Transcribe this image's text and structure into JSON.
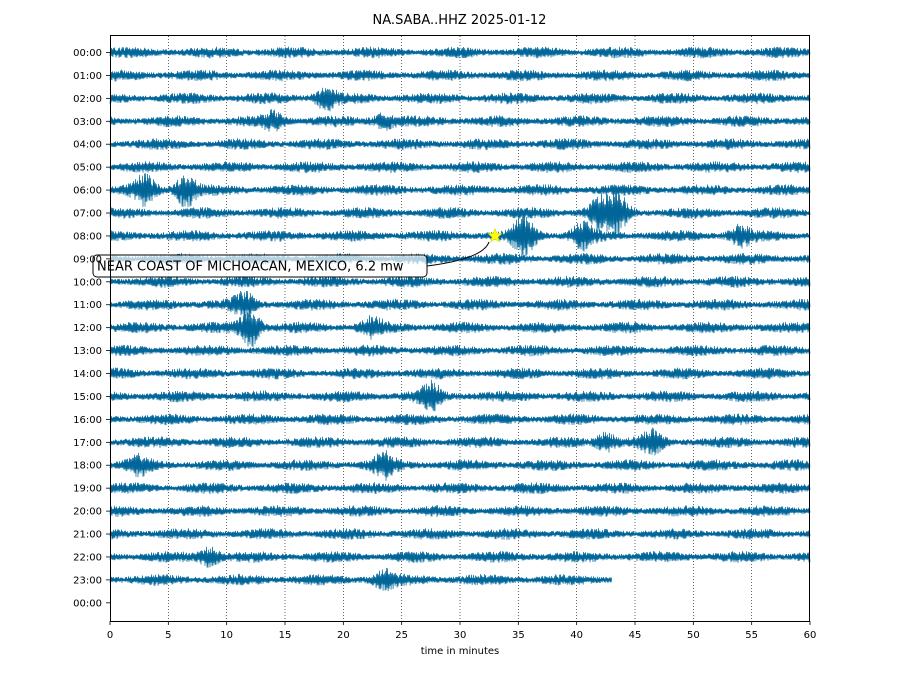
{
  "chart_data": {
    "type": "line",
    "title": "NA.SABA..HHZ 2025-01-12",
    "xlabel": "time in minutes",
    "ylabel": "",
    "xlim": [
      0,
      60
    ],
    "x_ticks": [
      "0",
      "5",
      "10",
      "15",
      "20",
      "25",
      "30",
      "35",
      "40",
      "45",
      "50",
      "55",
      "60"
    ],
    "y_ticks": [
      "00:00",
      "01:00",
      "02:00",
      "03:00",
      "04:00",
      "05:00",
      "06:00",
      "07:00",
      "08:00",
      "09:00",
      "10:00",
      "11:00",
      "12:00",
      "13:00",
      "14:00",
      "15:00",
      "16:00",
      "17:00",
      "18:00",
      "19:00",
      "20:00",
      "21:00",
      "22:00",
      "23:00",
      "00:00"
    ],
    "grid": "vertical dotted",
    "trace_color": "#006699",
    "last_trace_end_minute": 43,
    "events": [
      {
        "hour": 2,
        "minute": 18.5,
        "amplitude": 2.0
      },
      {
        "hour": 3,
        "minute": 14,
        "amplitude": 1.5
      },
      {
        "hour": 3,
        "minute": 23.5,
        "amplitude": 1.3
      },
      {
        "hour": 6,
        "minute": 3,
        "amplitude": 2.5
      },
      {
        "hour": 6,
        "minute": 6.5,
        "amplitude": 3.0
      },
      {
        "hour": 7,
        "minute": 42,
        "amplitude": 2.8
      },
      {
        "hour": 7,
        "minute": 43.5,
        "amplitude": 3.5
      },
      {
        "hour": 8,
        "minute": 35.5,
        "amplitude": 4.0
      },
      {
        "hour": 8,
        "minute": 40.5,
        "amplitude": 2.5
      },
      {
        "hour": 8,
        "minute": 54,
        "amplitude": 1.8
      },
      {
        "hour": 11,
        "minute": 11.5,
        "amplitude": 2.2
      },
      {
        "hour": 12,
        "minute": 12,
        "amplitude": 3.5
      },
      {
        "hour": 12,
        "minute": 22.5,
        "amplitude": 1.6
      },
      {
        "hour": 15,
        "minute": 27.5,
        "amplitude": 2.2
      },
      {
        "hour": 17,
        "minute": 46.5,
        "amplitude": 2.0
      },
      {
        "hour": 17,
        "minute": 42.5,
        "amplitude": 1.6
      },
      {
        "hour": 18,
        "minute": 23.5,
        "amplitude": 2.0
      },
      {
        "hour": 18,
        "minute": 2.5,
        "amplitude": 1.3
      },
      {
        "hour": 22,
        "minute": 8.5,
        "amplitude": 1.6
      },
      {
        "hour": 23,
        "minute": 23.5,
        "amplitude": 1.6
      }
    ],
    "annotations": [
      {
        "text": "NEAR COAST OF MICHOACAN, MEXICO, 6.2 mw",
        "marker": "star",
        "marker_color": "#ffff00",
        "hour": 8,
        "minute": 33
      }
    ]
  }
}
